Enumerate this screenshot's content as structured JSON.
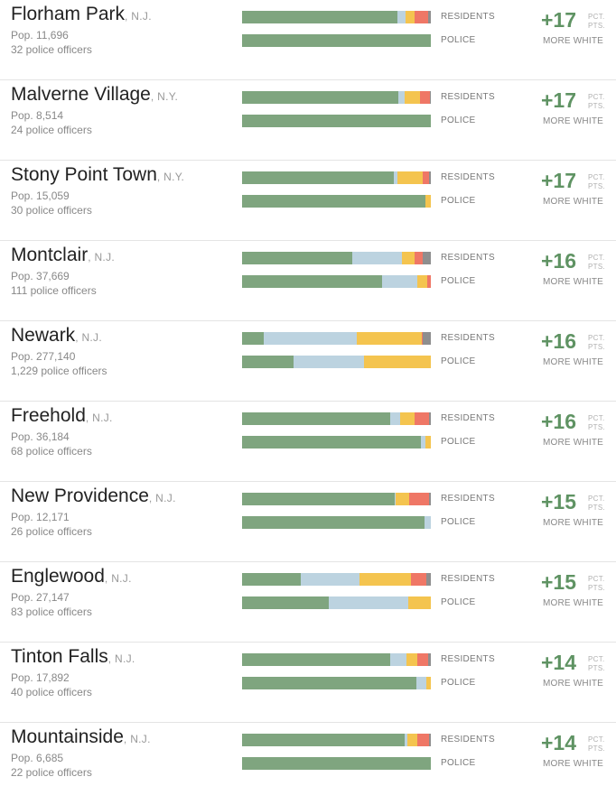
{
  "colors": {
    "white": "#7fa57f",
    "black": "#bcd3e0",
    "hispanic": "#f4c44f",
    "asian": "#ef7766",
    "other": "#8e8e8e",
    "difference": "#5f9363"
  },
  "labels": {
    "residents": "RESIDENTS",
    "police": "POLICE",
    "unit_line1": "PCT.",
    "unit_line2": "PTS.",
    "more_white": "MORE WHITE"
  },
  "chart_data": {
    "type": "bar",
    "orientation": "horizontal",
    "stacked": true,
    "normalized": "percent",
    "segment_order": [
      "white",
      "black",
      "hispanic",
      "asian",
      "other"
    ],
    "rows": [
      {
        "city": "Florham Park",
        "state": ", N.J.",
        "population": "Pop. 11,696",
        "officers": "32 police officers",
        "difference": "+17",
        "residents": [
          82.5,
          4,
          5,
          7,
          1.5
        ],
        "police": [
          100,
          0,
          0,
          0,
          0
        ]
      },
      {
        "city": "Malverne Village",
        "state": ", N.Y.",
        "population": "Pop. 8,514",
        "officers": "24 police officers",
        "difference": "+17",
        "residents": [
          83,
          3,
          8.5,
          5,
          0.5
        ],
        "police": [
          100,
          0,
          0,
          0,
          0
        ]
      },
      {
        "city": "Stony Point Town",
        "state": ", N.Y.",
        "population": "Pop. 15,059",
        "officers": "30 police officers",
        "difference": "+17",
        "residents": [
          80.5,
          2,
          13,
          3.5,
          1
        ],
        "police": [
          97,
          0,
          3,
          0,
          0
        ]
      },
      {
        "city": "Montclair",
        "state": ", N.J.",
        "population": "Pop. 37,669",
        "officers": "111 police officers",
        "difference": "+16",
        "residents": [
          58.5,
          26,
          7,
          4,
          4.5
        ],
        "police": [
          74,
          19,
          5,
          2,
          0
        ]
      },
      {
        "city": "Newark",
        "state": ", N.J.",
        "population": "Pop. 277,140",
        "officers": "1,229 police officers",
        "difference": "+16",
        "residents": [
          11.5,
          49.5,
          34,
          0.5,
          4.5
        ],
        "police": [
          27.5,
          37,
          35.5,
          0,
          0
        ]
      },
      {
        "city": "Freehold",
        "state": ", N.J.",
        "population": "Pop. 36,184",
        "officers": "68 police officers",
        "difference": "+16",
        "residents": [
          78.5,
          5,
          8,
          7.5,
          1
        ],
        "police": [
          94.5,
          2.5,
          3,
          0,
          0
        ]
      },
      {
        "city": "New Providence",
        "state": ", N.J.",
        "population": "Pop. 12,171",
        "officers": "26 police officers",
        "difference": "+15",
        "residents": [
          81,
          0.5,
          7,
          10.5,
          1
        ],
        "police": [
          96.5,
          3.5,
          0,
          0,
          0
        ]
      },
      {
        "city": "Englewood",
        "state": ", N.J.",
        "population": "Pop. 27,147",
        "officers": "83 police officers",
        "difference": "+15",
        "residents": [
          31,
          31,
          27.5,
          8,
          2.5
        ],
        "police": [
          46,
          42,
          12,
          0,
          0
        ]
      },
      {
        "city": "Tinton Falls",
        "state": ", N.J.",
        "population": "Pop. 17,892",
        "officers": "40 police officers",
        "difference": "+14",
        "residents": [
          78.5,
          8.5,
          6,
          5.5,
          1.5
        ],
        "police": [
          92.5,
          5,
          2.5,
          0,
          0
        ]
      },
      {
        "city": "Mountainside",
        "state": ", N.J.",
        "population": "Pop. 6,685",
        "officers": "22 police officers",
        "difference": "+14",
        "residents": [
          86,
          1.5,
          5.5,
          6,
          1
        ],
        "police": [
          100,
          0,
          0,
          0,
          0
        ]
      }
    ]
  }
}
